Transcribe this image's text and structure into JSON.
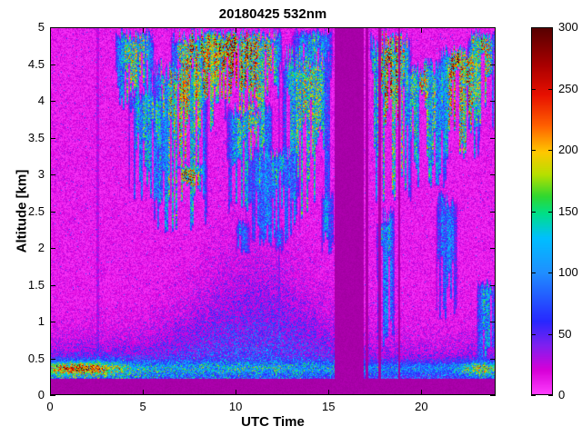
{
  "figure": {
    "title": "20180425 532nm",
    "xlabel": "UTC Time",
    "ylabel": "Altitude [km]"
  },
  "chart_data": {
    "type": "heatmap",
    "title": "20180425 532nm",
    "xlabel": "UTC Time",
    "ylabel": "Altitude [km]",
    "x_range": [
      0,
      24
    ],
    "y_range": [
      0,
      5
    ],
    "x_ticks": [
      0,
      5,
      10,
      15,
      20
    ],
    "y_ticks": [
      0,
      0.5,
      1,
      1.5,
      2,
      2.5,
      3,
      3.5,
      4,
      4.5,
      5
    ],
    "colorbar": {
      "min": 0,
      "max": 300,
      "ticks": [
        0,
        50,
        100,
        150,
        200,
        250,
        300
      ]
    },
    "colormap_stops": [
      [
        0,
        "#FF40FF"
      ],
      [
        20,
        "#D800D8"
      ],
      [
        40,
        "#8020F0"
      ],
      [
        60,
        "#2828FF"
      ],
      [
        100,
        "#2090FF"
      ],
      [
        128,
        "#00C0FF"
      ],
      [
        148,
        "#00E088"
      ],
      [
        162,
        "#30D830"
      ],
      [
        180,
        "#B8E000"
      ],
      [
        198,
        "#FFC800"
      ],
      [
        220,
        "#FF6000"
      ],
      [
        245,
        "#E81000"
      ],
      [
        270,
        "#A80000"
      ],
      [
        300,
        "#580000"
      ]
    ],
    "background_color": "#FFFFFF",
    "gap_color_rgb": [
      168,
      0,
      168
    ],
    "surface_blind_band_top_km": 0.22,
    "data_gaps_utc": [
      [
        15.35,
        16.9
      ],
      [
        17.0,
        17.15
      ],
      [
        17.7,
        17.85
      ],
      [
        18.75,
        18.88
      ]
    ],
    "light_stripes_utc": [
      [
        2.5,
        2.62
      ],
      [
        12.28,
        12.4
      ]
    ],
    "aerosol": {
      "base_amplitude": 85,
      "morning_boost": {
        "center_utc": 2.5,
        "width": 3.5,
        "amp": 50
      },
      "evening_boost": {
        "center_utc": 23.5,
        "width": 1.2,
        "amp": 35
      },
      "scale_height_km": 0.45,
      "midday_depth_boost": {
        "center_utc": 11,
        "width": 4,
        "amp": 0.75
      },
      "surface_layer": {
        "alt_km": 0.36,
        "thickness_km": 0.09,
        "base": 45,
        "morning_amp": 120,
        "morning_center": 1.5,
        "morning_width": 2.2,
        "evening_amp": 70,
        "evening_center": 23.2,
        "evening_width": 1.0
      }
    },
    "clouds": [
      {
        "t0": 3.5,
        "t1": 5.6,
        "zb": 3.8,
        "zt": 5.0,
        "i": 210
      },
      {
        "t0": 4.2,
        "t1": 6.5,
        "zb": 2.6,
        "zt": 4.2,
        "i": 165
      },
      {
        "t0": 5.5,
        "t1": 8.5,
        "zb": 2.2,
        "zt": 4.6,
        "i": 225
      },
      {
        "t0": 6.5,
        "t1": 9.5,
        "zb": 3.5,
        "zt": 5.0,
        "i": 255
      },
      {
        "t0": 6.8,
        "t1": 8.3,
        "zb": 2.75,
        "zt": 3.15,
        "i": 300
      },
      {
        "t0": 8.0,
        "t1": 12.5,
        "zb": 3.8,
        "zt": 5.0,
        "i": 290
      },
      {
        "t0": 9.5,
        "t1": 12.0,
        "zb": 2.4,
        "zt": 4.0,
        "i": 185
      },
      {
        "t0": 10.0,
        "t1": 10.8,
        "zb": 1.9,
        "zt": 2.4,
        "i": 135
      },
      {
        "t0": 10.5,
        "t1": 13.5,
        "zb": 2.0,
        "zt": 3.4,
        "i": 145
      },
      {
        "t0": 12.1,
        "t1": 12.6,
        "zb": 1.9,
        "zt": 2.3,
        "i": 120
      },
      {
        "t0": 12.5,
        "t1": 15.2,
        "zb": 2.2,
        "zt": 4.8,
        "i": 195
      },
      {
        "t0": 13.0,
        "t1": 15.25,
        "zb": 4.2,
        "zt": 5.0,
        "i": 155
      },
      {
        "t0": 14.6,
        "t1": 15.3,
        "zb": 1.9,
        "zt": 2.8,
        "i": 140
      },
      {
        "t0": 17.25,
        "t1": 19.5,
        "zb": 2.6,
        "zt": 5.0,
        "i": 250
      },
      {
        "t0": 17.6,
        "t1": 18.6,
        "zb": 0.6,
        "zt": 2.6,
        "i": 150
      },
      {
        "t0": 19.0,
        "t1": 21.5,
        "zb": 2.8,
        "zt": 4.6,
        "i": 205
      },
      {
        "t0": 20.8,
        "t1": 22.0,
        "zb": 1.0,
        "zt": 2.8,
        "i": 130
      },
      {
        "t0": 21.0,
        "t1": 23.2,
        "zb": 3.2,
        "zt": 4.8,
        "i": 280
      },
      {
        "t0": 22.5,
        "t1": 24.0,
        "zb": 3.6,
        "zt": 5.0,
        "i": 235
      },
      {
        "t0": 23.0,
        "t1": 24.0,
        "zb": 0.4,
        "zt": 1.6,
        "i": 160
      }
    ]
  }
}
